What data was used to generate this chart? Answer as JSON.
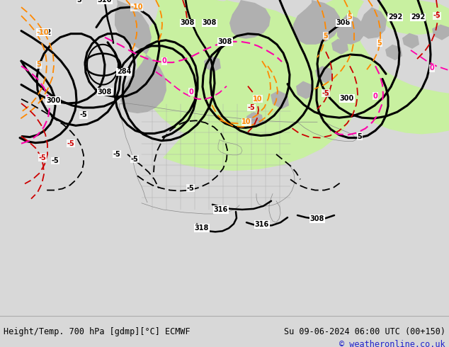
{
  "title_left": "Height/Temp. 700 hPa [gdmp][°C] ECMWF",
  "title_right": "Su 09-06-2024 06:00 UTC (00+150)",
  "copyright": "© weatheronline.co.uk",
  "bg_color": "#d8d8d8",
  "map_bg": "#d8d8d8",
  "green_fill": "#c8f0a0",
  "gray_fill": "#b0b0b0",
  "bottom_bar_color": "#e8e8e8",
  "copyright_color": "#2222cc",
  "text_color": "#000000",
  "fig_width": 6.34,
  "fig_height": 4.9,
  "orange": "#ff8800",
  "red": "#cc0000",
  "pink": "#ff00aa",
  "black": "#000000"
}
